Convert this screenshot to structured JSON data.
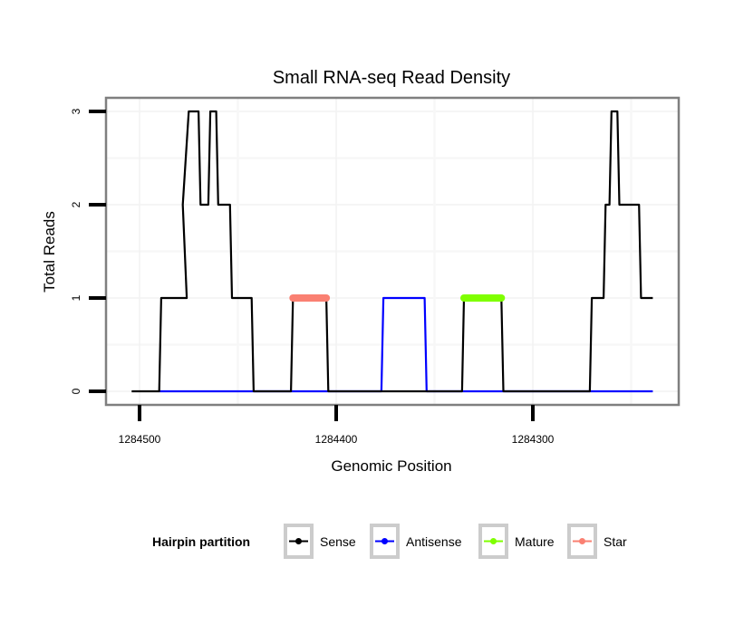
{
  "chart_data": {
    "type": "line",
    "title": "Small RNA-seq Read Density",
    "xlabel": "Genomic Position",
    "ylabel": "Total Reads",
    "x_reversed": true,
    "xlim": [
      1284504,
      1284239
    ],
    "ylim": [
      0,
      3
    ],
    "x_ticks": [
      1284500,
      1284400,
      1284300
    ],
    "x_tick_labels": [
      "1284500",
      "1284400",
      "1284300"
    ],
    "y_ticks": [
      0,
      1,
      2,
      3
    ],
    "y_tick_labels": [
      "0",
      "1",
      "2",
      "3"
    ],
    "grid": true,
    "legend": {
      "title": "Hairpin partition",
      "position": "bottom",
      "entries": [
        {
          "label": "Sense",
          "color": "#000000"
        },
        {
          "label": "Antisense",
          "color": "#0000ff"
        },
        {
          "label": "Mature",
          "color": "#7fff00"
        },
        {
          "label": "Star",
          "color": "#fa8072"
        }
      ]
    },
    "series": [
      {
        "name": "Antisense",
        "color": "#0000ff",
        "x": [
          1284490,
          1284443,
          1284423,
          1284405,
          1284377,
          1284376,
          1284355,
          1284354,
          1284336,
          1284316,
          1284271,
          1284239
        ],
        "y": [
          0,
          0,
          0,
          0,
          0,
          1,
          1,
          0,
          0,
          0,
          0,
          0
        ]
      },
      {
        "name": "Sense",
        "color": "#000000",
        "x": [
          1284504,
          1284490,
          1284489,
          1284476,
          1284478,
          1284475,
          1284470,
          1284469,
          1284465,
          1284464,
          1284461,
          1284460,
          1284454,
          1284453,
          1284443,
          1284442,
          1284423,
          1284422,
          1284405,
          1284404,
          1284377,
          1284376,
          1284355,
          1284354,
          1284336,
          1284335,
          1284316,
          1284315,
          1284271,
          1284270,
          1284264,
          1284263,
          1284261,
          1284260,
          1284257,
          1284256,
          1284246,
          1284245,
          1284239
        ],
        "y": [
          0,
          0,
          1,
          1,
          2,
          3,
          3,
          2,
          2,
          3,
          3,
          2,
          2,
          1,
          1,
          0,
          0,
          1,
          1,
          0,
          0,
          0,
          0,
          0,
          0,
          1,
          1,
          0,
          0,
          1,
          1,
          2,
          2,
          3,
          3,
          2,
          2,
          1,
          1
        ]
      },
      {
        "name": "Mature",
        "color": "#7fff00",
        "x": [
          1284335,
          1284316
        ],
        "y": [
          1,
          1
        ]
      },
      {
        "name": "Star",
        "color": "#fa8072",
        "x": [
          1284422,
          1284405
        ],
        "y": [
          1,
          1
        ]
      }
    ]
  }
}
